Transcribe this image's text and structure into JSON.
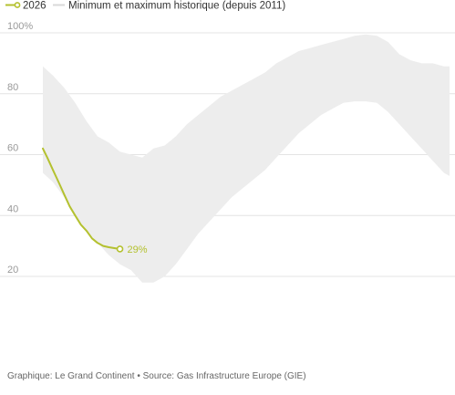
{
  "colors": {
    "series_line": "#b4c12f",
    "band_fill": "#ededed",
    "band_legend": "#d9d9d9",
    "grid": "#e4e4e4",
    "tick_text": "#999999",
    "end_marker_fill": "#ffffff"
  },
  "source_text": "Graphique: Le Grand Continent • Source: Gas Infrastructure Europe (GIE)",
  "chart_data": {
    "type": "area",
    "title": "",
    "xlabel": "",
    "ylabel": "",
    "ylim": [
      10,
      100
    ],
    "xlim": [
      1,
      365
    ],
    "x_unit": "day of year",
    "grid": true,
    "legend": "top-left",
    "y_ticks": [
      {
        "value": 100,
        "label": "100%"
      },
      {
        "value": 80,
        "label": "80"
      },
      {
        "value": 60,
        "label": "60"
      },
      {
        "value": 40,
        "label": "40"
      },
      {
        "value": 20,
        "label": "20"
      }
    ],
    "legend_entries": [
      {
        "key": "series",
        "label": "2026"
      },
      {
        "key": "band",
        "label": "Minimum et maximum historique (depuis 2011)"
      }
    ],
    "band": {
      "label": "Minimum et maximum historique (depuis 2011)",
      "x": [
        1,
        10,
        20,
        30,
        40,
        50,
        60,
        70,
        80,
        90,
        100,
        110,
        120,
        130,
        140,
        150,
        160,
        170,
        180,
        190,
        200,
        210,
        220,
        230,
        240,
        250,
        260,
        270,
        280,
        290,
        300,
        310,
        320,
        330,
        340,
        350,
        360,
        365
      ],
      "max": [
        89,
        86,
        82,
        77,
        71,
        66,
        64,
        61,
        60,
        59,
        62,
        63,
        66,
        70,
        73,
        76,
        79,
        81,
        83,
        85,
        87,
        90,
        92,
        94,
        95,
        96,
        97,
        98,
        99,
        99.5,
        99,
        97,
        93,
        91,
        90,
        90,
        89,
        89
      ],
      "min": [
        54,
        51,
        46,
        40,
        35,
        31,
        27,
        24,
        22,
        18,
        18,
        20,
        24,
        29,
        34,
        38,
        42,
        46,
        49,
        52,
        55,
        59,
        63,
        67,
        70,
        73,
        75,
        77,
        77.5,
        77.5,
        77,
        74,
        70,
        66,
        62,
        58,
        54,
        53
      ]
    },
    "series": [
      {
        "name": "2026",
        "x": [
          1,
          5,
          10,
          15,
          20,
          25,
          30,
          35,
          40,
          45,
          50,
          55,
          60,
          65,
          70
        ],
        "y": [
          62,
          59,
          55,
          51,
          47,
          43,
          40,
          37,
          35,
          32.5,
          31,
          30,
          29.6,
          29.3,
          29
        ],
        "end_label": "29%"
      }
    ]
  }
}
